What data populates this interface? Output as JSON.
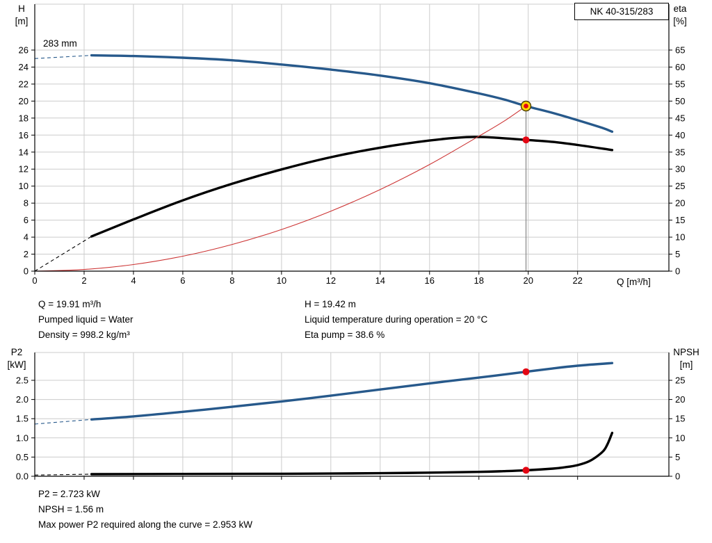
{
  "title_box": {
    "label": "NK 40-315/283"
  },
  "impeller_label": "283 mm",
  "results_top_left": {
    "flow": "Q = 19.91 m³/h",
    "liquid": "Pumped liquid = Water",
    "density": "Density = 998.2 kg/m³"
  },
  "results_top_right": {
    "head": "H = 19.42 m",
    "temperature": "Liquid temperature during operation = 20 °C",
    "eta": "Eta pump = 38.6 %"
  },
  "results_bottom": {
    "p2": "P2 = 2.723 kW",
    "npsh": "NPSH = 1.56 m",
    "max_power": "Max power P2 required along the curve = 2.953 kW"
  },
  "colors": {
    "curve_blue": "#27598b",
    "curve_black": "#000000",
    "system_red": "#cc3333",
    "duty_red": "#e30613",
    "duty_yellow": "#ffd800",
    "grid": "#cccccc",
    "axis": "#000000",
    "duty_line_gray": "#8c8c8c"
  },
  "chart_data": [
    {
      "id": "hq-chart",
      "type": "line",
      "x_axis": {
        "label": "Q [m³/h]",
        "range": [
          0,
          25.7
        ],
        "tick_values": [
          0,
          2,
          4,
          6,
          8,
          10,
          12,
          14,
          16,
          18,
          20,
          22
        ],
        "tick_labels": [
          "0",
          "2",
          "4",
          "6",
          "8",
          "10",
          "12",
          "14",
          "16",
          "18",
          "20",
          "22"
        ]
      },
      "y_left": {
        "label_lines": [
          "H",
          "[m]"
        ],
        "range": [
          0,
          26
        ],
        "tick_values": [
          0,
          2,
          4,
          6,
          8,
          10,
          12,
          14,
          16,
          18,
          20,
          22,
          24,
          26
        ],
        "tick_labels": [
          "0",
          "2",
          "4",
          "6",
          "8",
          "10",
          "12",
          "14",
          "16",
          "18",
          "20",
          "22",
          "24",
          "26"
        ]
      },
      "y_right": {
        "label_lines": [
          "eta",
          "[%]"
        ],
        "range": [
          0,
          65
        ],
        "tick_values": [
          0,
          5,
          10,
          15,
          20,
          25,
          30,
          35,
          40,
          45,
          50,
          55,
          60,
          65
        ],
        "tick_labels": [
          "0",
          "5",
          "10",
          "15",
          "20",
          "25",
          "30",
          "35",
          "40",
          "45",
          "50",
          "55",
          "60",
          "65"
        ]
      },
      "series": [
        {
          "name": "head-curve",
          "axis": "left",
          "color": "#27598b",
          "width": 3.4,
          "lead": [
            [
              0,
              25.0
            ],
            [
              2.3,
              25.38
            ]
          ],
          "points": [
            [
              2.3,
              25.38
            ],
            [
              4,
              25.3
            ],
            [
              6,
              25.1
            ],
            [
              8,
              24.8
            ],
            [
              10,
              24.3
            ],
            [
              12,
              23.7
            ],
            [
              14,
              23.0
            ],
            [
              16,
              22.1
            ],
            [
              18,
              20.9
            ],
            [
              19,
              20.2
            ],
            [
              19.91,
              19.42
            ],
            [
              21,
              18.6
            ],
            [
              22,
              17.75
            ],
            [
              23,
              16.85
            ],
            [
              23.4,
              16.4
            ]
          ]
        },
        {
          "name": "eta-curve",
          "axis": "right",
          "color": "#000000",
          "width": 3.4,
          "lead": [
            [
              0,
              0
            ],
            [
              2.3,
              10.2
            ]
          ],
          "points": [
            [
              2.3,
              10.2
            ],
            [
              4,
              15.2
            ],
            [
              6,
              20.8
            ],
            [
              8,
              25.7
            ],
            [
              10,
              29.9
            ],
            [
              12,
              33.5
            ],
            [
              14,
              36.3
            ],
            [
              16,
              38.4
            ],
            [
              17.5,
              39.4
            ],
            [
              18.5,
              39.3
            ],
            [
              19.91,
              38.6
            ],
            [
              21,
              38.0
            ],
            [
              22,
              37.1
            ],
            [
              23.4,
              35.6
            ]
          ]
        },
        {
          "name": "system-curve",
          "axis": "left",
          "color": "#cc3333",
          "width": 1.1,
          "points": [
            [
              0,
              0
            ],
            [
              2,
              0.2
            ],
            [
              4,
              0.78
            ],
            [
              6,
              1.76
            ],
            [
              8,
              3.14
            ],
            [
              10,
              4.9
            ],
            [
              12,
              7.06
            ],
            [
              14,
              9.6
            ],
            [
              16,
              12.54
            ],
            [
              18,
              15.88
            ],
            [
              19,
              17.6
            ],
            [
              19.91,
              19.42
            ]
          ]
        }
      ],
      "duty_line": {
        "q": 19.91,
        "value": 19.42
      },
      "markers": [
        {
          "name": "duty-point-head",
          "axis": "left",
          "q": 19.91,
          "value": 19.42,
          "style": "target",
          "fill": "#ffd800",
          "center": "#e30613"
        },
        {
          "name": "duty-point-eta",
          "axis": "right",
          "q": 19.91,
          "value": 38.6,
          "style": "dot",
          "fill": "#e30613"
        }
      ]
    },
    {
      "id": "p2-npsh-chart",
      "type": "line",
      "x_axis": {
        "label": "",
        "range": [
          0,
          25.7
        ],
        "tick_values": [
          0,
          2,
          4,
          6,
          8,
          10,
          12,
          14,
          16,
          18,
          20,
          22
        ],
        "tick_labels": []
      },
      "y_left": {
        "label_lines": [
          "P2",
          "[kW]"
        ],
        "range": [
          0,
          2.5
        ],
        "tick_values": [
          0,
          0.5,
          1,
          1.5,
          2,
          2.5
        ],
        "tick_labels": [
          "0.0",
          "0.5",
          "1.0",
          "1.5",
          "2.0",
          "2.5"
        ]
      },
      "y_right": {
        "label_lines": [
          "NPSH",
          "[m]"
        ],
        "range": [
          0,
          25
        ],
        "tick_values": [
          0,
          5,
          10,
          15,
          20,
          25
        ],
        "tick_labels": [
          "0",
          "5",
          "10",
          "15",
          "20",
          "25"
        ]
      },
      "series": [
        {
          "name": "p2-curve",
          "axis": "left",
          "color": "#27598b",
          "width": 3.4,
          "lead": [
            [
              0,
              1.36
            ],
            [
              2.3,
              1.48
            ]
          ],
          "points": [
            [
              2.3,
              1.48
            ],
            [
              4,
              1.56
            ],
            [
              6,
              1.68
            ],
            [
              8,
              1.81
            ],
            [
              10,
              1.95
            ],
            [
              12,
              2.1
            ],
            [
              14,
              2.26
            ],
            [
              16,
              2.42
            ],
            [
              18,
              2.57
            ],
            [
              19.91,
              2.723
            ],
            [
              21,
              2.81
            ],
            [
              22,
              2.88
            ],
            [
              23.4,
              2.95
            ]
          ]
        },
        {
          "name": "npsh-curve",
          "axis": "right",
          "color": "#000000",
          "width": 3.4,
          "lead": [
            [
              0,
              0.3
            ],
            [
              2.3,
              0.55
            ]
          ],
          "points": [
            [
              2.3,
              0.55
            ],
            [
              6,
              0.6
            ],
            [
              10,
              0.65
            ],
            [
              12,
              0.7
            ],
            [
              14,
              0.8
            ],
            [
              16,
              0.95
            ],
            [
              18,
              1.15
            ],
            [
              19,
              1.32
            ],
            [
              19.91,
              1.56
            ],
            [
              21,
              2.0
            ],
            [
              21.5,
              2.35
            ],
            [
              22,
              2.9
            ],
            [
              22.5,
              4.0
            ],
            [
              23,
              6.3
            ],
            [
              23.2,
              8.2
            ],
            [
              23.4,
              11.3
            ]
          ]
        }
      ],
      "markers": [
        {
          "name": "duty-point-p2",
          "axis": "left",
          "q": 19.91,
          "value": 2.723,
          "style": "dot",
          "fill": "#e30613"
        },
        {
          "name": "duty-point-npsh",
          "axis": "right",
          "q": 19.91,
          "value": 1.56,
          "style": "dot",
          "fill": "#e30613"
        }
      ]
    }
  ]
}
